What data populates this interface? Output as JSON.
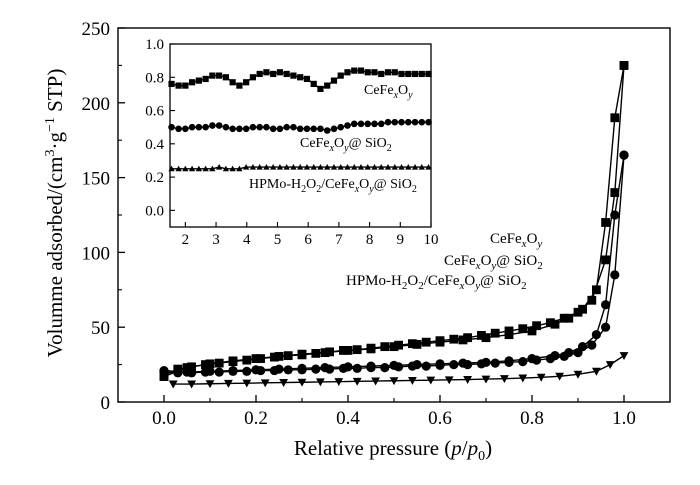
{
  "chart_data": [
    {
      "type": "scatter",
      "title": "",
      "xlabel": "Relative pressure (p/p0)",
      "xlabel_parts": {
        "pre": "Relative pressure (",
        "p1": "p",
        "slash": "/",
        "p2": "p",
        "sub": "0",
        "post": ")"
      },
      "ylabel": "Volumme adsorbed/(cm3·g-1 STP)",
      "ylabel_parts": {
        "pre": "Volumme adsorbed/(cm",
        "sup1": "3",
        "mid": "·g",
        "sup2": "−1",
        "post": " STP)"
      },
      "xlim": [
        -0.1,
        1.1
      ],
      "ylim": [
        0,
        250
      ],
      "x_ticks": [
        0.0,
        0.2,
        0.4,
        0.6,
        0.8,
        1.0
      ],
      "x_tick_labels": [
        "0.0",
        "0.2",
        "0.4",
        "0.6",
        "0.8",
        "1.0"
      ],
      "y_ticks": [
        0,
        50,
        100,
        150,
        200,
        250
      ],
      "y_tick_labels": [
        "0",
        "50",
        "100",
        "150",
        "200",
        "250"
      ],
      "grid": false,
      "series": [
        {
          "name": "CeFexOy",
          "label_parts": {
            "a": "CeFe",
            "x": "x",
            "b": "O",
            "y": "y",
            "c": ""
          },
          "marker": "square",
          "adsorption": {
            "x": [
              0.0,
              0.03,
              0.06,
              0.09,
              0.12,
              0.15,
              0.18,
              0.21,
              0.24,
              0.27,
              0.3,
              0.33,
              0.36,
              0.39,
              0.42,
              0.45,
              0.48,
              0.51,
              0.54,
              0.57,
              0.6,
              0.63,
              0.66,
              0.69,
              0.72,
              0.75,
              0.78,
              0.81,
              0.84,
              0.87,
              0.9,
              0.93,
              0.96,
              0.98,
              1.0
            ],
            "y": [
              18,
              22,
              23.5,
              25,
              26,
              27,
              28,
              29,
              30,
              31,
              31.5,
              32.5,
              33.5,
              34.5,
              35,
              36,
              37,
              38,
              39,
              40,
              41,
              42,
              43,
              44.5,
              46,
              47.5,
              49,
              51,
              53,
              56,
              60,
              68,
              95,
              140,
              225
            ]
          },
          "desorption": {
            "x": [
              0.0,
              0.05,
              0.1,
              0.15,
              0.2,
              0.25,
              0.3,
              0.35,
              0.4,
              0.45,
              0.5,
              0.55,
              0.6,
              0.65,
              0.7,
              0.75,
              0.8,
              0.85,
              0.88,
              0.91,
              0.94,
              0.96,
              0.98,
              1.0
            ],
            "y": [
              17,
              23,
              25.5,
              27.5,
              29,
              30.5,
              32,
              33,
              34.5,
              35.5,
              37,
              38.5,
              40,
              41.5,
              43,
              45,
              47.5,
              52,
              56,
              62,
              75,
              120,
              190,
              225
            ]
          }
        },
        {
          "name": "CeFexOy@ SiO2",
          "label_parts": {
            "a": "CeFe",
            "x": "x",
            "b": "O",
            "y": "y",
            "c": "@ SiO",
            "sub": "2"
          },
          "marker": "circle",
          "adsorption": {
            "x": [
              0.0,
              0.03,
              0.06,
              0.09,
              0.12,
              0.15,
              0.18,
              0.21,
              0.24,
              0.27,
              0.3,
              0.33,
              0.36,
              0.39,
              0.42,
              0.45,
              0.48,
              0.51,
              0.54,
              0.57,
              0.6,
              0.63,
              0.66,
              0.69,
              0.72,
              0.75,
              0.78,
              0.81,
              0.84,
              0.87,
              0.9,
              0.93,
              0.96,
              0.98,
              1.0
            ],
            "y": [
              20,
              19.5,
              19.5,
              20,
              20,
              20.5,
              20.5,
              21,
              21,
              21.5,
              21.5,
              22,
              22,
              22.5,
              22.5,
              23,
              23,
              23.5,
              24,
              24,
              24.5,
              25,
              25,
              25.5,
              26,
              26.5,
              27,
              28,
              29,
              30.5,
              33,
              38,
              50,
              85,
              165
            ]
          },
          "desorption": {
            "x": [
              0.0,
              0.05,
              0.1,
              0.15,
              0.2,
              0.25,
              0.3,
              0.35,
              0.4,
              0.45,
              0.5,
              0.55,
              0.6,
              0.65,
              0.7,
              0.75,
              0.8,
              0.85,
              0.88,
              0.91,
              0.94,
              0.96,
              0.98,
              1.0
            ],
            "y": [
              21,
              20,
              20.5,
              21,
              21.5,
              22,
              22.5,
              23,
              23.5,
              24,
              24.5,
              25,
              25.5,
              26,
              26.5,
              27.5,
              29,
              31,
              33,
              37,
              45,
              65,
              125,
              165
            ]
          }
        },
        {
          "name": "HPMo-H2O2/CeFexOy@ SiO2",
          "label_parts": {
            "a": "HPMo-H",
            "sub1": "2",
            "b": "O",
            "sub2": "2",
            "c": "/CeFe",
            "x": "x",
            "d": "O",
            "y": "y",
            "e": "@ SiO",
            "sub3": "2"
          },
          "marker": "triangle-down",
          "adsorption": {
            "x": [
              0.02,
              0.06,
              0.1,
              0.14,
              0.18,
              0.22,
              0.26,
              0.3,
              0.34,
              0.38,
              0.42,
              0.46,
              0.5,
              0.54,
              0.58,
              0.62,
              0.66,
              0.7,
              0.74,
              0.78,
              0.82,
              0.86,
              0.9,
              0.94,
              0.97,
              1.0
            ],
            "y": [
              12,
              12,
              12.2,
              12.4,
              12.6,
              12.8,
              13,
              13.2,
              13.4,
              13.6,
              13.8,
              14,
              14.2,
              14.4,
              14.6,
              14.8,
              15,
              15.3,
              15.6,
              16,
              16.5,
              17.2,
              18.5,
              20.5,
              25,
              31
            ]
          }
        }
      ],
      "annotations": [
        {
          "label_ref": 0
        },
        {
          "label_ref": 1
        },
        {
          "label_ref": 2
        }
      ]
    },
    {
      "type": "line",
      "title": "",
      "xlabel": "",
      "ylabel": "",
      "xlim": [
        1.5,
        10
      ],
      "ylim": [
        -0.1,
        1.0
      ],
      "x_ticks": [
        2,
        3,
        4,
        5,
        6,
        7,
        8,
        9,
        10
      ],
      "x_tick_labels": [
        "2",
        "3",
        "4",
        "5",
        "6",
        "7",
        "8",
        "9",
        "10"
      ],
      "y_ticks": [
        0.0,
        0.2,
        0.4,
        0.6,
        0.8,
        1.0
      ],
      "y_tick_labels": [
        "0.0",
        "0.2",
        "0.4",
        "0.6",
        "0.8",
        "1.0"
      ],
      "grid": false,
      "series": [
        {
          "name": "CeFexOy",
          "label_parts": {
            "a": "CeFe",
            "x": "x",
            "b": "O",
            "y": "y",
            "c": ""
          },
          "marker": "square",
          "x": [
            1.55,
            1.78,
            2.0,
            2.22,
            2.44,
            2.66,
            2.88,
            3.1,
            3.32,
            3.54,
            3.76,
            3.98,
            4.2,
            4.42,
            4.64,
            4.86,
            5.08,
            5.3,
            5.52,
            5.74,
            5.96,
            6.18,
            6.4,
            6.62,
            6.84,
            7.06,
            7.28,
            7.5,
            7.72,
            7.94,
            8.16,
            8.38,
            8.6,
            8.82,
            9.04,
            9.26,
            9.48,
            9.7,
            9.92
          ],
          "y": [
            0.76,
            0.75,
            0.75,
            0.77,
            0.78,
            0.79,
            0.81,
            0.81,
            0.8,
            0.77,
            0.75,
            0.77,
            0.8,
            0.82,
            0.83,
            0.82,
            0.83,
            0.82,
            0.81,
            0.8,
            0.79,
            0.76,
            0.73,
            0.75,
            0.78,
            0.81,
            0.83,
            0.84,
            0.84,
            0.83,
            0.83,
            0.82,
            0.83,
            0.83,
            0.82,
            0.82,
            0.82,
            0.82,
            0.82
          ]
        },
        {
          "name": "CeFexOy@ SiO2",
          "label_parts": {
            "a": "CeFe",
            "x": "x",
            "b": "O",
            "y": "y",
            "c": "@ SiO",
            "sub": "2"
          },
          "marker": "circle",
          "x": [
            1.55,
            1.78,
            2.0,
            2.22,
            2.44,
            2.66,
            2.88,
            3.1,
            3.32,
            3.54,
            3.76,
            3.98,
            4.2,
            4.42,
            4.64,
            4.86,
            5.08,
            5.3,
            5.52,
            5.74,
            5.96,
            6.18,
            6.4,
            6.62,
            6.84,
            7.06,
            7.28,
            7.5,
            7.72,
            7.94,
            8.16,
            8.38,
            8.6,
            8.82,
            9.04,
            9.26,
            9.48,
            9.7,
            9.92
          ],
          "y": [
            0.5,
            0.49,
            0.49,
            0.5,
            0.5,
            0.5,
            0.51,
            0.51,
            0.5,
            0.49,
            0.49,
            0.49,
            0.5,
            0.5,
            0.5,
            0.49,
            0.49,
            0.5,
            0.5,
            0.49,
            0.49,
            0.49,
            0.49,
            0.48,
            0.49,
            0.5,
            0.51,
            0.52,
            0.52,
            0.52,
            0.52,
            0.52,
            0.53,
            0.53,
            0.53,
            0.53,
            0.53,
            0.53,
            0.53
          ]
        },
        {
          "name": "HPMo-H2O2/CeFexOy@ SiO2",
          "label_parts": {
            "a": "HPMo-H",
            "sub1": "2",
            "b": "O",
            "sub2": "2",
            "c": "/CeFe",
            "x": "x",
            "d": "O",
            "y": "y",
            "e": "@ SiO",
            "sub3": "2"
          },
          "marker": "triangle-up",
          "x": [
            1.55,
            1.78,
            2.0,
            2.22,
            2.44,
            2.66,
            2.88,
            3.1,
            3.32,
            3.54,
            3.76,
            3.98,
            4.2,
            4.42,
            4.64,
            4.86,
            5.08,
            5.3,
            5.52,
            5.74,
            5.96,
            6.18,
            6.4,
            6.62,
            6.84,
            7.06,
            7.28,
            7.5,
            7.72,
            7.94,
            8.16,
            8.38,
            8.6,
            8.82,
            9.04,
            9.26,
            9.48,
            9.7,
            9.92
          ],
          "y": [
            0.25,
            0.25,
            0.25,
            0.25,
            0.25,
            0.25,
            0.25,
            0.26,
            0.25,
            0.25,
            0.25,
            0.26,
            0.26,
            0.26,
            0.26,
            0.26,
            0.26,
            0.26,
            0.26,
            0.26,
            0.26,
            0.26,
            0.26,
            0.26,
            0.26,
            0.26,
            0.26,
            0.26,
            0.26,
            0.26,
            0.26,
            0.26,
            0.26,
            0.26,
            0.26,
            0.26,
            0.26,
            0.26,
            0.26
          ]
        }
      ]
    }
  ]
}
